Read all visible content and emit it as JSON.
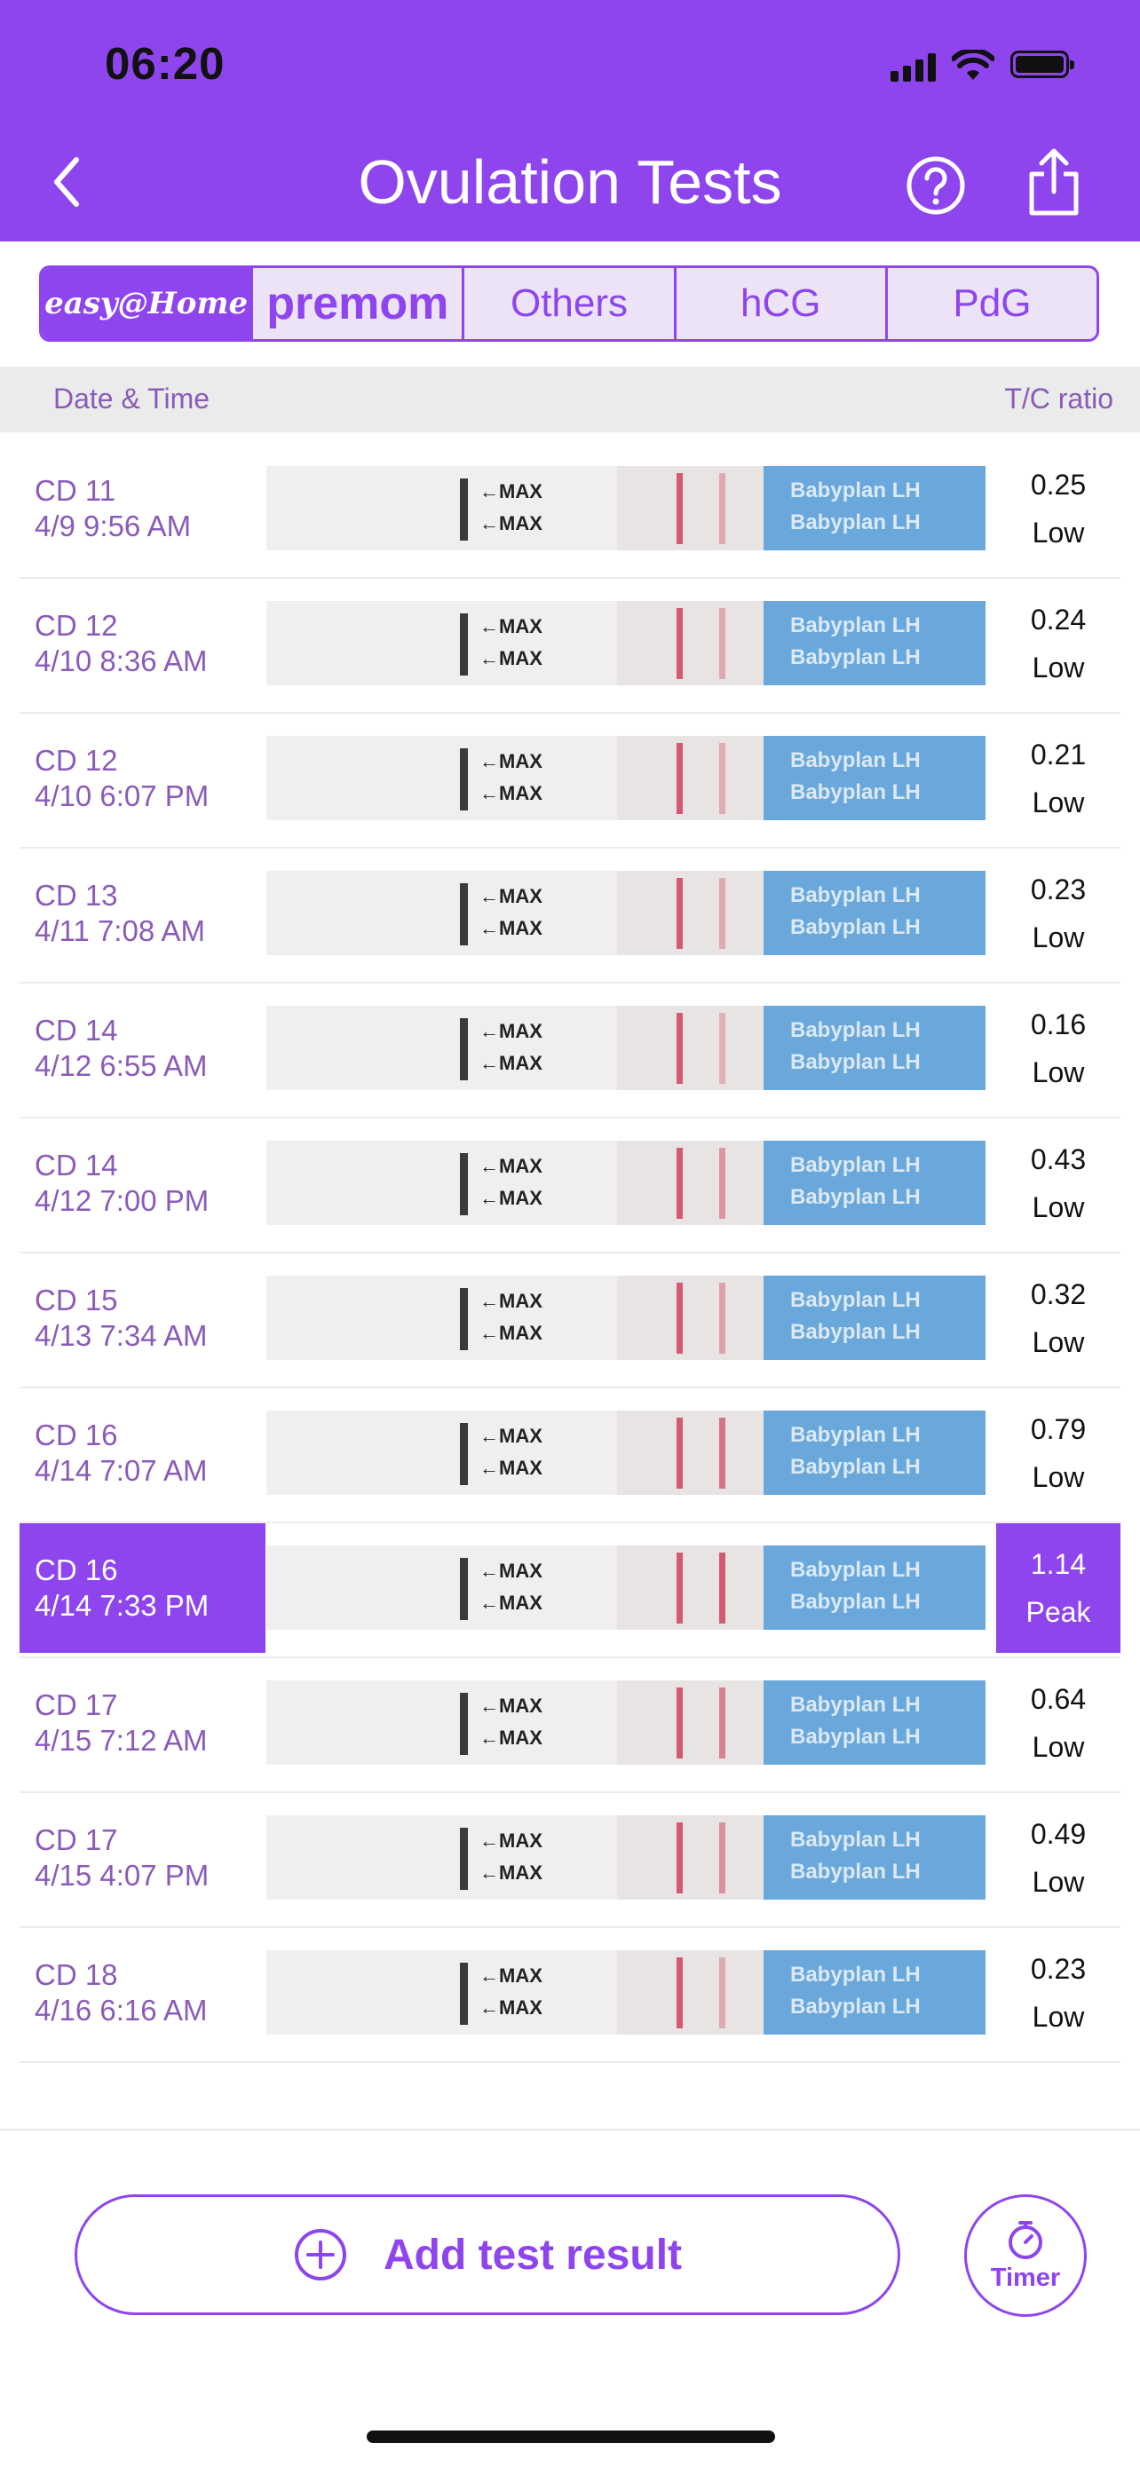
{
  "status_bar": {
    "time": "06:20"
  },
  "header": {
    "title": "Ovulation Tests"
  },
  "brand_tabs": [
    {
      "label": "easy@Home"
    },
    {
      "label": "premom"
    },
    {
      "label": "Others"
    },
    {
      "label": "hCG"
    },
    {
      "label": "PdG"
    }
  ],
  "columns": {
    "left": "Date & Time",
    "right": "T/C ratio"
  },
  "strip": {
    "max_label": "←MAX",
    "brand_text": "Babyplan LH"
  },
  "tests": [
    {
      "cd": "CD 11",
      "datetime": "4/9 9:56 AM",
      "ratio": "0.25",
      "level": "Low"
    },
    {
      "cd": "CD 12",
      "datetime": "4/10 8:36 AM",
      "ratio": "0.24",
      "level": "Low"
    },
    {
      "cd": "CD 12",
      "datetime": "4/10 6:07 PM",
      "ratio": "0.21",
      "level": "Low"
    },
    {
      "cd": "CD 13",
      "datetime": "4/11 7:08 AM",
      "ratio": "0.23",
      "level": "Low"
    },
    {
      "cd": "CD 14",
      "datetime": "4/12 6:55 AM",
      "ratio": "0.16",
      "level": "Low"
    },
    {
      "cd": "CD 14",
      "datetime": "4/12 7:00 PM",
      "ratio": "0.43",
      "level": "Low"
    },
    {
      "cd": "CD 15",
      "datetime": "4/13 7:34 AM",
      "ratio": "0.32",
      "level": "Low"
    },
    {
      "cd": "CD 16",
      "datetime": "4/14 7:07 AM",
      "ratio": "0.79",
      "level": "Low"
    },
    {
      "cd": "CD 16",
      "datetime": "4/14 7:33 PM",
      "ratio": "1.14",
      "level": "Peak"
    },
    {
      "cd": "CD 17",
      "datetime": "4/15 7:12 AM",
      "ratio": "0.64",
      "level": "Low"
    },
    {
      "cd": "CD 17",
      "datetime": "4/15 4:07 PM",
      "ratio": "0.49",
      "level": "Low"
    },
    {
      "cd": "CD 18",
      "datetime": "4/16 6:16 AM",
      "ratio": "0.23",
      "level": "Low"
    }
  ],
  "actions": {
    "add_label": "Add test result",
    "timer_label": "Timer"
  },
  "colors": {
    "accent": "#8e45ee",
    "line_red": "#d35a72",
    "strip_blue": "#6aa8dc"
  }
}
